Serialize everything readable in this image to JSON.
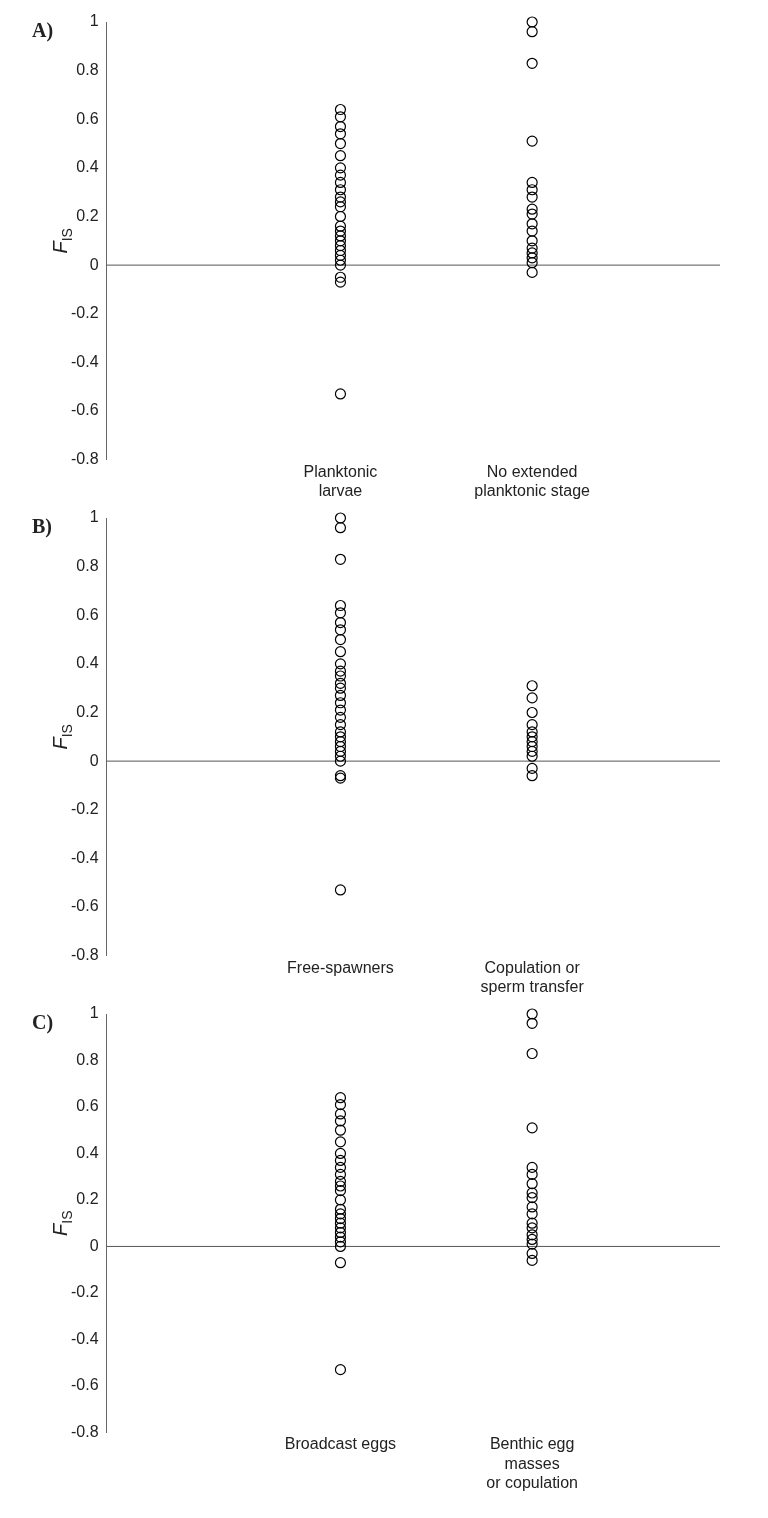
{
  "chart_data": [
    {
      "type": "scatter",
      "title": "A)",
      "ylabel": "F$_{IS}$",
      "categories": [
        "Planktonic\nlarvae",
        "No extended\nplanktonic stage"
      ],
      "ylim": [
        -0.8,
        1
      ],
      "yticks": [
        -0.8,
        -0.6,
        -0.4,
        -0.2,
        0,
        0.2,
        0.4,
        0.6,
        0.8,
        1
      ],
      "grid": false,
      "legend": false,
      "marker": "circle",
      "ref_lines": [
        {
          "axis": "y",
          "value": 0,
          "color": "#555555"
        }
      ],
      "series": [
        {
          "color": "#000000",
          "x": [
            "Planktonic\nlarvae",
            "Planktonic\nlarvae",
            "Planktonic\nlarvae",
            "Planktonic\nlarvae",
            "Planktonic\nlarvae",
            "Planktonic\nlarvae",
            "Planktonic\nlarvae",
            "Planktonic\nlarvae",
            "Planktonic\nlarvae",
            "Planktonic\nlarvae",
            "Planktonic\nlarvae",
            "Planktonic\nlarvae",
            "Planktonic\nlarvae",
            "Planktonic\nlarvae",
            "Planktonic\nlarvae",
            "Planktonic\nlarvae",
            "Planktonic\nlarvae",
            "Planktonic\nlarvae",
            "Planktonic\nlarvae",
            "Planktonic\nlarvae",
            "Planktonic\nlarvae",
            "Planktonic\nlarvae",
            "Planktonic\nlarvae",
            "Planktonic\nlarvae",
            "Planktonic\nlarvae",
            "Planktonic\nlarvae"
          ],
          "values": [
            0.64,
            0.61,
            0.57,
            0.54,
            0.5,
            0.45,
            0.4,
            0.37,
            0.34,
            0.31,
            0.28,
            0.26,
            0.24,
            0.2,
            0.16,
            0.14,
            0.12,
            0.1,
            0.08,
            0.06,
            0.04,
            0.02,
            0,
            -0.05,
            -0.07,
            -0.53
          ]
        },
        {
          "color": "#000000",
          "x": [
            "No extended\nplanktonic stage",
            "No extended\nplanktonic stage",
            "No extended\nplanktonic stage",
            "No extended\nplanktonic stage",
            "No extended\nplanktonic stage",
            "No extended\nplanktonic stage",
            "No extended\nplanktonic stage",
            "No extended\nplanktonic stage",
            "No extended\nplanktonic stage",
            "No extended\nplanktonic stage",
            "No extended\nplanktonic stage",
            "No extended\nplanktonic stage",
            "No extended\nplanktonic stage",
            "No extended\nplanktonic stage",
            "No extended\nplanktonic stage",
            "No extended\nplanktonic stage",
            "No extended\nplanktonic stage"
          ],
          "values": [
            1,
            0.96,
            0.83,
            0.51,
            0.34,
            0.31,
            0.28,
            0.23,
            0.21,
            0.17,
            0.14,
            0.1,
            0.07,
            0.05,
            0.03,
            0.01,
            -0.03
          ]
        }
      ]
    },
    {
      "type": "scatter",
      "title": "B)",
      "ylabel": "F$_{IS}$",
      "categories": [
        "Free-spawners",
        "Copulation or\nsperm transfer"
      ],
      "ylim": [
        -0.8,
        1
      ],
      "yticks": [
        -0.8,
        -0.6,
        -0.4,
        -0.2,
        0,
        0.2,
        0.4,
        0.6,
        0.8,
        1
      ],
      "grid": false,
      "legend": false,
      "marker": "circle",
      "ref_lines": [
        {
          "axis": "y",
          "value": 0,
          "color": "#555555"
        }
      ],
      "series": [
        {
          "color": "#000000",
          "x": [
            "Free-spawners",
            "Free-spawners",
            "Free-spawners",
            "Free-spawners",
            "Free-spawners",
            "Free-spawners",
            "Free-spawners",
            "Free-spawners",
            "Free-spawners",
            "Free-spawners",
            "Free-spawners",
            "Free-spawners",
            "Free-spawners",
            "Free-spawners",
            "Free-spawners",
            "Free-spawners",
            "Free-spawners",
            "Free-spawners",
            "Free-spawners",
            "Free-spawners",
            "Free-spawners",
            "Free-spawners",
            "Free-spawners",
            "Free-spawners",
            "Free-spawners",
            "Free-spawners",
            "Free-spawners",
            "Free-spawners",
            "Free-spawners"
          ],
          "values": [
            1,
            0.96,
            0.83,
            0.64,
            0.61,
            0.57,
            0.54,
            0.5,
            0.45,
            0.4,
            0.37,
            0.35,
            0.32,
            0.3,
            0.27,
            0.24,
            0.21,
            0.18,
            0.15,
            0.12,
            0.1,
            0.08,
            0.06,
            0.04,
            0.02,
            0,
            -0.06,
            -0.07,
            -0.53
          ]
        },
        {
          "color": "#000000",
          "x": [
            "Copulation or\nsperm transfer",
            "Copulation or\nsperm transfer",
            "Copulation or\nsperm transfer",
            "Copulation or\nsperm transfer",
            "Copulation or\nsperm transfer",
            "Copulation or\nsperm transfer",
            "Copulation or\nsperm transfer",
            "Copulation or\nsperm transfer",
            "Copulation or\nsperm transfer",
            "Copulation or\nsperm transfer",
            "Copulation or\nsperm transfer",
            "Copulation or\nsperm transfer"
          ],
          "values": [
            0.31,
            0.26,
            0.2,
            0.15,
            0.12,
            0.1,
            0.08,
            0.06,
            0.04,
            0.02,
            -0.03,
            -0.06
          ]
        }
      ]
    },
    {
      "type": "scatter",
      "title": "C)",
      "ylabel": "F$_{IS}$",
      "categories": [
        "Broadcast eggs",
        "Benthic egg\nmasses\nor copulation"
      ],
      "ylim": [
        -0.8,
        1
      ],
      "yticks": [
        -0.8,
        -0.6,
        -0.4,
        -0.2,
        0,
        0.2,
        0.4,
        0.6,
        0.8,
        1
      ],
      "grid": false,
      "legend": false,
      "marker": "circle",
      "ref_lines": [
        {
          "axis": "y",
          "value": 0,
          "color": "#555555"
        }
      ],
      "series": [
        {
          "color": "#000000",
          "x": [
            "Broadcast eggs",
            "Broadcast eggs",
            "Broadcast eggs",
            "Broadcast eggs",
            "Broadcast eggs",
            "Broadcast eggs",
            "Broadcast eggs",
            "Broadcast eggs",
            "Broadcast eggs",
            "Broadcast eggs",
            "Broadcast eggs",
            "Broadcast eggs",
            "Broadcast eggs",
            "Broadcast eggs",
            "Broadcast eggs",
            "Broadcast eggs",
            "Broadcast eggs",
            "Broadcast eggs",
            "Broadcast eggs",
            "Broadcast eggs",
            "Broadcast eggs",
            "Broadcast eggs",
            "Broadcast eggs",
            "Broadcast eggs",
            "Broadcast eggs"
          ],
          "values": [
            0.64,
            0.61,
            0.57,
            0.54,
            0.5,
            0.45,
            0.4,
            0.37,
            0.34,
            0.31,
            0.28,
            0.26,
            0.24,
            0.2,
            0.16,
            0.14,
            0.12,
            0.1,
            0.08,
            0.06,
            0.04,
            0.02,
            0,
            -0.07,
            -0.53
          ]
        },
        {
          "color": "#000000",
          "x": [
            "Benthic egg\nmasses\nor copulation",
            "Benthic egg\nmasses\nor copulation",
            "Benthic egg\nmasses\nor copulation",
            "Benthic egg\nmasses\nor copulation",
            "Benthic egg\nmasses\nor copulation",
            "Benthic egg\nmasses\nor copulation",
            "Benthic egg\nmasses\nor copulation",
            "Benthic egg\nmasses\nor copulation",
            "Benthic egg\nmasses\nor copulation",
            "Benthic egg\nmasses\nor copulation",
            "Benthic egg\nmasses\nor copulation",
            "Benthic egg\nmasses\nor copulation",
            "Benthic egg\nmasses\nor copulation",
            "Benthic egg\nmasses\nor copulation",
            "Benthic egg\nmasses\nor copulation",
            "Benthic egg\nmasses\nor copulation",
            "Benthic egg\nmasses\nor copulation",
            "Benthic egg\nmasses\nor copulation"
          ],
          "values": [
            1,
            0.96,
            0.83,
            0.51,
            0.34,
            0.31,
            0.27,
            0.23,
            0.21,
            0.17,
            0.14,
            0.1,
            0.08,
            0.05,
            0.03,
            0.01,
            -0.03,
            -0.06
          ]
        }
      ]
    }
  ]
}
